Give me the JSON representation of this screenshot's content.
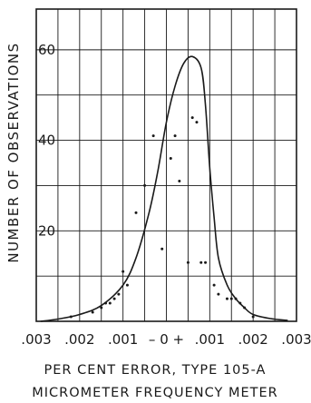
{
  "chart_data": {
    "type": "scatter",
    "xlabel_line1": "PER CENT ERROR, TYPE 105-A",
    "xlabel_line2": "MICROMETER FREQUENCY METER",
    "ylabel": "NUMBER OF OBSERVATIONS",
    "x_tick_labels": [
      ".003",
      ".002",
      ".001",
      "– 0 +",
      ".001",
      ".002",
      ".003"
    ],
    "x_ticks": [
      -0.003,
      -0.002,
      -0.001,
      0,
      0.001,
      0.002,
      0.003
    ],
    "y_ticks": [
      20,
      40,
      60
    ],
    "y_tick_labels": [
      "20",
      "40",
      "60"
    ],
    "xlim": [
      -0.003,
      0.003
    ],
    "ylim": [
      0,
      69
    ],
    "grid": true,
    "curve": {
      "x": [
        -0.0029,
        -0.0025,
        -0.002,
        -0.0015,
        -0.001,
        -0.0007,
        -0.0004,
        -0.0002,
        0,
        0.0002,
        0.0004,
        0.0006,
        0.0008,
        0.0009,
        0.001,
        0.0011,
        0.0012,
        0.0014,
        0.0016,
        0.0018,
        0.002,
        0.0024,
        0.0028
      ],
      "y": [
        0,
        0.5,
        1.5,
        3.5,
        8,
        14,
        24,
        33,
        44,
        52,
        57,
        58.5,
        56,
        48,
        34,
        23,
        14,
        8,
        5,
        3,
        1.5,
        0.6,
        0.2
      ]
    },
    "points": {
      "x": [
        -0.0022,
        -0.0017,
        -0.0015,
        -0.0014,
        -0.0013,
        -0.0012,
        -0.0011,
        -0.001,
        -0.0009,
        -0.0007,
        -0.0005,
        -0.0003,
        -0.0001,
        0.0001,
        0.0002,
        0.0003,
        0.0005,
        0.0006,
        0.0007,
        0.0008,
        0.0009,
        0.0011,
        0.0012,
        0.0014,
        0.0015,
        0.0016,
        0.0017,
        0.0018,
        0.002
      ],
      "y": [
        1,
        2,
        3,
        4,
        4,
        5,
        6,
        11,
        8,
        24,
        30,
        41,
        16,
        36,
        41,
        31,
        13,
        45,
        44,
        13,
        13,
        8,
        6,
        5,
        5,
        5,
        4,
        3,
        1
      ]
    }
  }
}
